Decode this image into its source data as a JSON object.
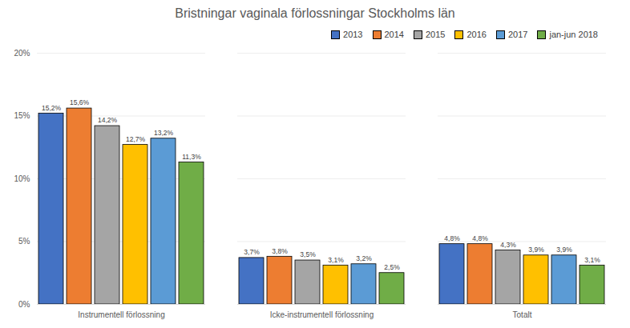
{
  "chart_data": {
    "type": "bar",
    "title": "Bristningar vaginala förlossningar Stockholms län",
    "categories": [
      "Instrumentell förlossning",
      "Icke-instrumentell förlossning",
      "Totalt"
    ],
    "series": [
      {
        "name": "2013",
        "color": "#4472c4",
        "values": [
          15.2,
          3.7,
          4.8
        ],
        "value_labels": [
          "15,2%",
          "3,7%",
          "4,8%"
        ]
      },
      {
        "name": "2014",
        "color": "#ed7d31",
        "values": [
          15.6,
          3.8,
          4.8
        ],
        "value_labels": [
          "15,6%",
          "3,8%",
          "4,8%"
        ]
      },
      {
        "name": "2015",
        "color": "#a5a5a5",
        "values": [
          14.2,
          3.5,
          4.3
        ],
        "value_labels": [
          "14,2%",
          "3,5%",
          "4,3%"
        ]
      },
      {
        "name": "2016",
        "color": "#ffc000",
        "values": [
          12.7,
          3.1,
          3.9
        ],
        "value_labels": [
          "12,7%",
          "3,1%",
          "3,9%"
        ]
      },
      {
        "name": "2017",
        "color": "#5b9bd5",
        "values": [
          13.2,
          3.2,
          3.9
        ],
        "value_labels": [
          "13,2%",
          "3,2%",
          "3,9%"
        ]
      },
      {
        "name": "jan-jun 2018",
        "color": "#70ad47",
        "values": [
          11.3,
          2.5,
          3.1
        ],
        "value_labels": [
          "11,3%",
          "2,5%",
          "3,1%"
        ]
      }
    ],
    "ylim": [
      0,
      20
    ],
    "yticks": [
      {
        "value": 0,
        "label": "0%"
      },
      {
        "value": 5,
        "label": "5%"
      },
      {
        "value": 10,
        "label": "10%"
      },
      {
        "value": 15,
        "label": "15%"
      },
      {
        "value": 20,
        "label": "20%"
      }
    ],
    "grid": true,
    "legend": "top-right",
    "data_labels": true
  }
}
